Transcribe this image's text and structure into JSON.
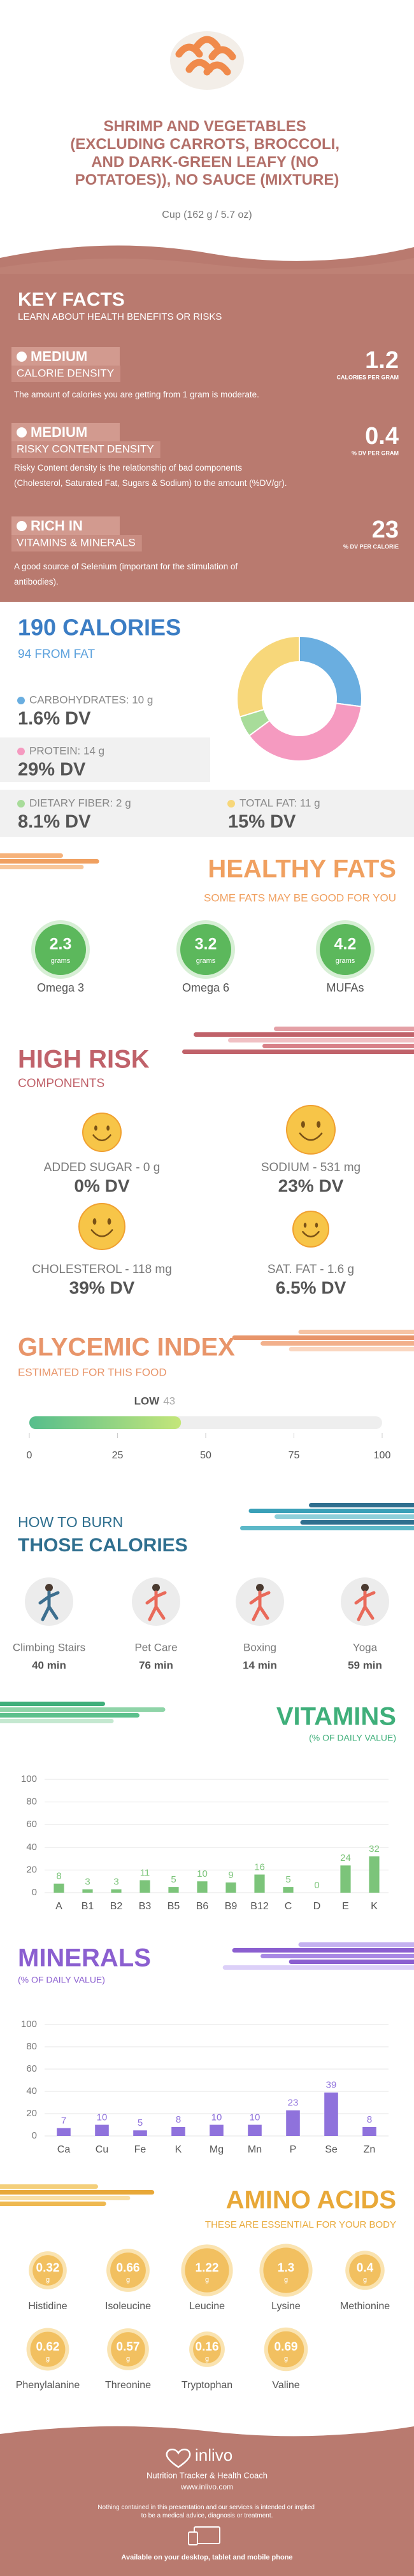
{
  "header": {
    "title": "SHRIMP AND VEGETABLES (EXCLUDING CARROTS, BROCCOLI, AND DARK-GREEN LEAFY (NO POTATOES)), NO SAUCE (MIXTURE)",
    "serving": "Cup (162 g / 5.7 oz)"
  },
  "key_facts": {
    "title": "KEY FACTS",
    "subtitle": "LEARN ABOUT HEALTH BENEFITS OR RISKS",
    "facts": [
      {
        "level": "MEDIUM",
        "name": "CALORIE DENSITY",
        "value": 1.2,
        "unit": "CALORIES PER GRAM",
        "description": "The amount of calories you are getting from 1 gram is moderate."
      },
      {
        "level": "MEDIUM",
        "name": "RISKY CONTENT DENSITY",
        "value": 0.4,
        "unit": "% DV PER GRAM",
        "description": "Risky Content density is the relationship of bad components (Cholesterol, Saturated Fat, Sugars & Sodium) to the amount (%DV/gr)."
      },
      {
        "level": "RICH IN",
        "name": "VITAMINS & MINERALS",
        "value": 23,
        "unit": "% DV PER CALORIE",
        "description": "A good source of Selenium (important for the stimulation of antibodies)."
      }
    ]
  },
  "calories": {
    "title": "190 CALORIES",
    "subtitle": "94 FROM FAT",
    "nutrients": [
      {
        "label": "CARBOHYDRATES: 10 g",
        "dv": "1.6% DV",
        "grams": 10,
        "color": "#6aaee0"
      },
      {
        "label": "PROTEIN: 14 g",
        "dv": "29% DV",
        "grams": 14,
        "color": "#f59ac0"
      },
      {
        "label": "DIETARY FIBER: 2 g",
        "dv": "8.1% DV",
        "grams": 2,
        "color": "#a8dc9a"
      },
      {
        "label": "TOTAL FAT: 11 g",
        "dv": "15% DV",
        "grams": 11,
        "color": "#f7d77a"
      }
    ]
  },
  "healthy_fats": {
    "title": "HEALTHY FATS",
    "subtitle": "SOME FATS MAY BE GOOD FOR YOU",
    "unit": "grams",
    "items": [
      {
        "name": "Omega 3",
        "value": 2.3
      },
      {
        "name": "Omega 6",
        "value": 3.2
      },
      {
        "name": "MUFAs",
        "value": 4.2
      }
    ]
  },
  "high_risk": {
    "title": "HIGH RISK",
    "subtitle": "COMPONENTS",
    "items": [
      {
        "label": "ADDED SUGAR - 0 g",
        "dv": "0% DV"
      },
      {
        "label": "SODIUM - 531 mg",
        "dv": "23% DV"
      },
      {
        "label": "CHOLESTEROL - 118 mg",
        "dv": "39% DV"
      },
      {
        "label": "SAT. FAT - 1.6 g",
        "dv": "6.5% DV"
      }
    ]
  },
  "glycemic_index": {
    "title": "GLYCEMIC INDEX",
    "subtitle": "ESTIMATED FOR THIS FOOD",
    "level": "LOW",
    "value": 43,
    "xlim": [
      0,
      100
    ],
    "xticks": [
      0,
      25,
      50,
      75,
      100
    ]
  },
  "burn": {
    "title": "HOW TO BURN",
    "subtitle": "THOSE CALORIES",
    "activities": [
      {
        "name": "Climbing Stairs",
        "duration": "40 min"
      },
      {
        "name": "Pet Care",
        "duration": "76 min"
      },
      {
        "name": "Boxing",
        "duration": "14 min"
      },
      {
        "name": "Yoga",
        "duration": "59 min"
      }
    ]
  },
  "vitamins": {
    "type": "bar",
    "title": "VITAMINS",
    "subtitle": "(% OF DAILY VALUE)",
    "categories": [
      "A",
      "B1",
      "B2",
      "B3",
      "B5",
      "B6",
      "B9",
      "B12",
      "C",
      "D",
      "E",
      "K"
    ],
    "values": [
      8,
      3,
      3,
      11,
      5,
      10,
      9,
      16,
      5,
      0,
      24,
      32
    ],
    "color": "#7cc47a",
    "ylim": [
      0,
      100
    ],
    "yticks": [
      0,
      20,
      40,
      60,
      80,
      100
    ],
    "grid": true
  },
  "minerals": {
    "type": "bar",
    "title": "MINERALS",
    "subtitle": "(% OF DAILY VALUE)",
    "categories": [
      "Ca",
      "Cu",
      "Fe",
      "K",
      "Mg",
      "Mn",
      "P",
      "Se",
      "Zn"
    ],
    "values": [
      7,
      10,
      5,
      8,
      10,
      10,
      23,
      39,
      8
    ],
    "color": "#8f72dc",
    "ylim": [
      0,
      100
    ],
    "yticks": [
      0,
      20,
      40,
      60,
      80,
      100
    ],
    "grid": true
  },
  "amino_acids": {
    "title": "AMINO ACIDS",
    "subtitle": "THESE ARE ESSENTIAL FOR YOUR BODY",
    "unit": "g",
    "items": [
      {
        "name": "Histidine",
        "value": 0.32
      },
      {
        "name": "Isoleucine",
        "value": 0.66
      },
      {
        "name": "Leucine",
        "value": 1.22
      },
      {
        "name": "Lysine",
        "value": 1.3
      },
      {
        "name": "Methionine",
        "value": 0.4
      },
      {
        "name": "Phenylalanine",
        "value": 0.62
      },
      {
        "name": "Threonine",
        "value": 0.57
      },
      {
        "name": "Tryptophan",
        "value": 0.16
      },
      {
        "name": "Valine",
        "value": 0.69
      }
    ]
  },
  "footer": {
    "brand": "inlivo",
    "tagline": "Nutrition Tracker & Health Coach",
    "url": "www.inlivo.com",
    "disclaimer": "Nothing contained in this presentation and our services is intended or implied to be a medical advice, diagnosis or treatment.",
    "availability": "Available on your desktop, tablet and mobile phone"
  }
}
